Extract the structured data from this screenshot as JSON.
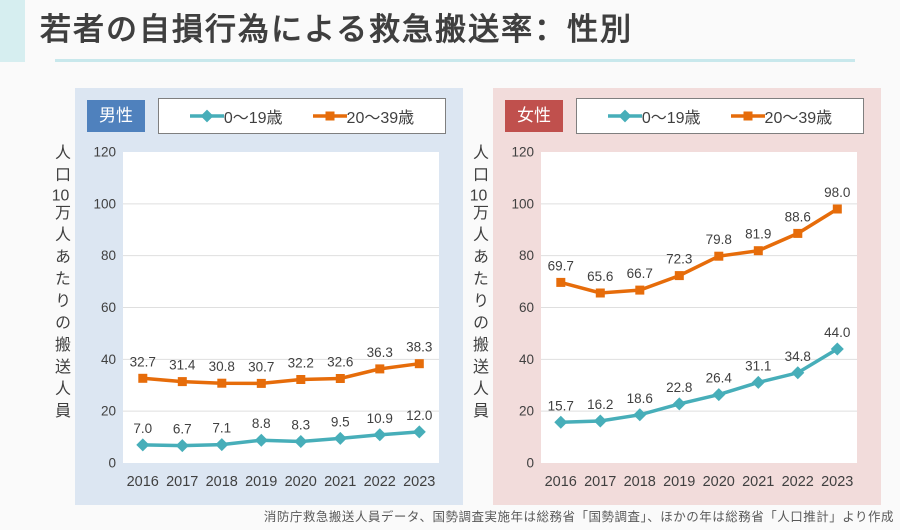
{
  "page": {
    "title": "若者の自損行為による救急搬送率：性別",
    "source_note": "消防庁救急搬送人員データ、国勢調査実施年は総務省「国勢調査」、ほかの年は総務省「人口推計」より作成"
  },
  "colors": {
    "accent_bar": "#D6EEF0",
    "title_underline": "#C8E8EC",
    "male_badge": "#4F81BD",
    "female_badge": "#C0504D",
    "male_panel_bg": "#DCE6F2",
    "female_panel_bg": "#F2DCDB",
    "series_0_19": "#47AEB9",
    "series_20_39": "#E66C0A",
    "gridline": "#DFDFDF"
  },
  "chart_data": [
    {
      "type": "line",
      "panel_label": "男性",
      "panel_bg": "#DCE6F2",
      "badge_bg": "#4F81BD",
      "ylabel": "人口10万人あたりの搬送人員",
      "ylim": [
        0,
        120
      ],
      "yticks": [
        0,
        20,
        40,
        60,
        80,
        100,
        120
      ],
      "grid": true,
      "legend_position": "top",
      "categories": [
        "2016",
        "2017",
        "2018",
        "2019",
        "2020",
        "2021",
        "2022",
        "2023"
      ],
      "series": [
        {
          "name": "0〜19歳",
          "marker": "diamond",
          "color": "#47AEB9",
          "values": [
            7.0,
            6.7,
            7.1,
            8.8,
            8.3,
            9.5,
            10.9,
            12.0
          ]
        },
        {
          "name": "20〜39歳",
          "marker": "square",
          "color": "#E66C0A",
          "values": [
            32.7,
            31.4,
            30.8,
            30.7,
            32.2,
            32.6,
            36.3,
            38.3
          ]
        }
      ]
    },
    {
      "type": "line",
      "panel_label": "女性",
      "panel_bg": "#F2DCDB",
      "badge_bg": "#C0504D",
      "ylabel": "人口10万人あたりの搬送人員",
      "ylim": [
        0,
        120
      ],
      "yticks": [
        0,
        20,
        40,
        60,
        80,
        100,
        120
      ],
      "grid": true,
      "legend_position": "top",
      "categories": [
        "2016",
        "2017",
        "2018",
        "2019",
        "2020",
        "2021",
        "2022",
        "2023"
      ],
      "series": [
        {
          "name": "0〜19歳",
          "marker": "diamond",
          "color": "#47AEB9",
          "values": [
            15.7,
            16.2,
            18.6,
            22.8,
            26.4,
            31.1,
            34.8,
            44.0
          ]
        },
        {
          "name": "20〜39歳",
          "marker": "square",
          "color": "#E66C0A",
          "values": [
            69.7,
            65.6,
            66.7,
            72.3,
            79.8,
            81.9,
            88.6,
            98.0
          ]
        }
      ]
    }
  ]
}
